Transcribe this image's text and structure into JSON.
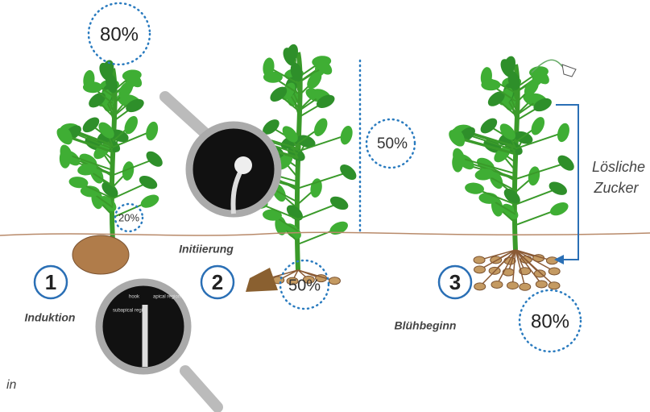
{
  "percentages": {
    "top": "80%",
    "stem": "20%",
    "height": "50%",
    "tubers": "50%",
    "bottom": "80%"
  },
  "stages": [
    {
      "number": "1",
      "label": "Induktion"
    },
    {
      "number": "2",
      "label": "Initiierung"
    },
    {
      "number": "3",
      "label": "Blühbeginn"
    }
  ],
  "side_label": [
    "Lösliche",
    "Zucker"
  ],
  "inset_labels": [
    "hook",
    "apical region",
    "subapical region"
  ],
  "footer_text": "in"
}
